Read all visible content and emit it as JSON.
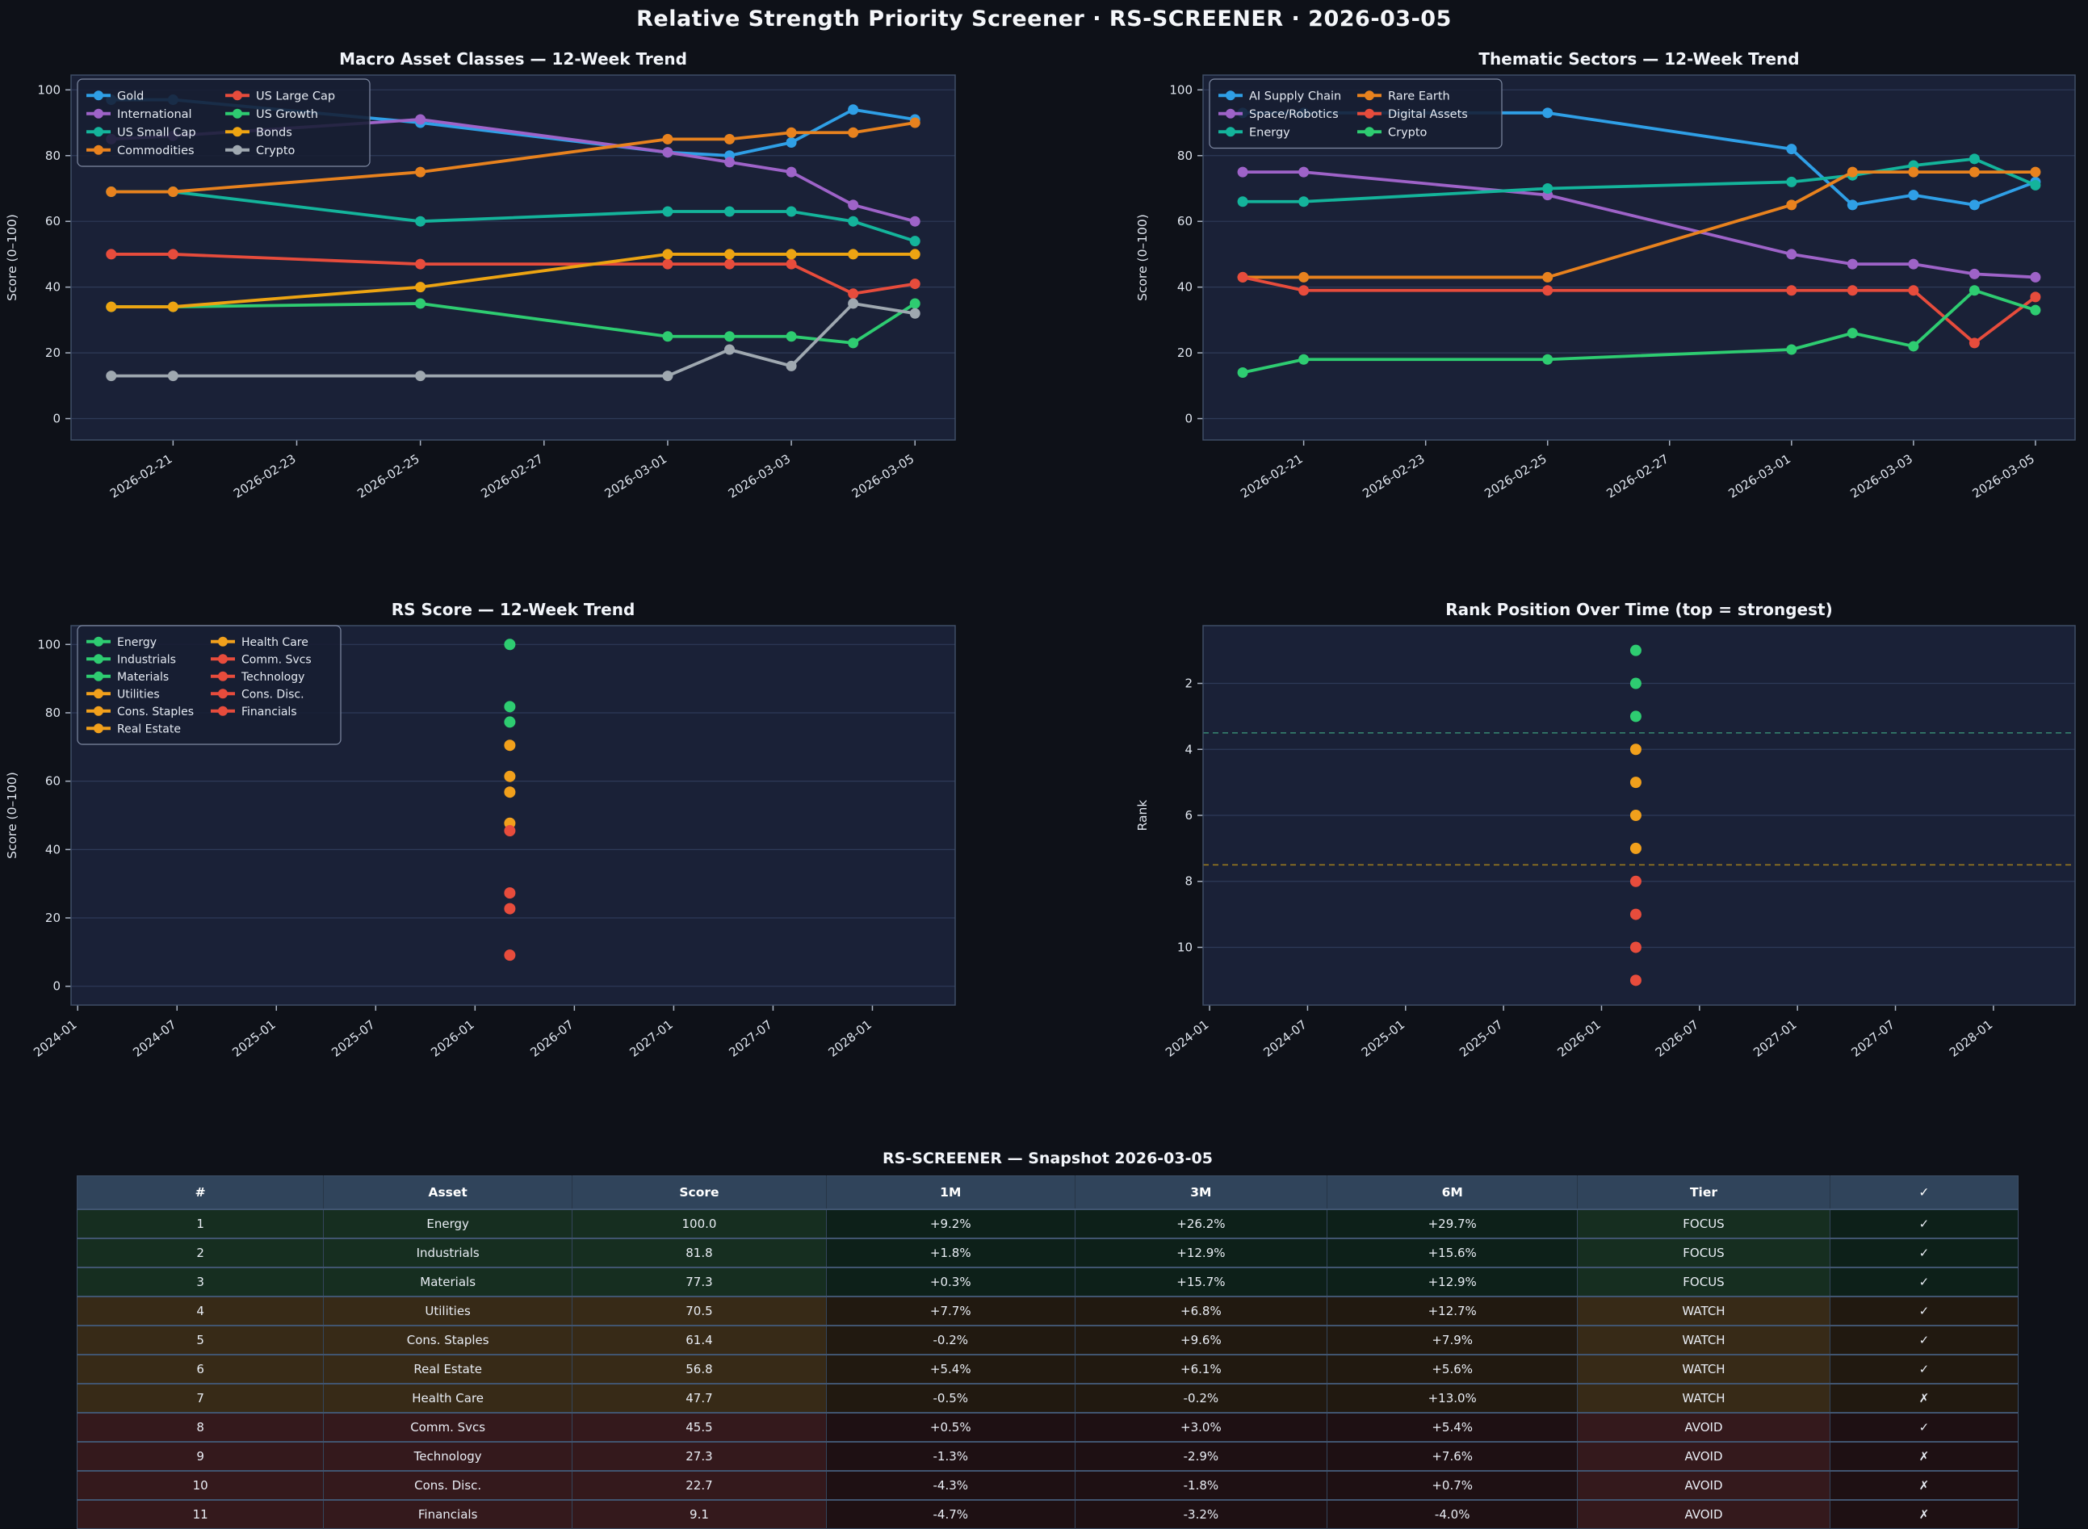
{
  "header": {
    "title": "Relative Strength Priority Screener  ·  RS-SCREENER  ·  2026-03-05"
  },
  "chart_data": [
    {
      "id": "macro",
      "type": "line",
      "title": "Macro Asset Classes — 12-Week Trend",
      "ylabel": "Score (0–100)",
      "ylim": [
        0,
        100
      ],
      "yticks": [
        0,
        20,
        40,
        60,
        80,
        100
      ],
      "x_dates": [
        "2026-02-20",
        "2026-02-21",
        "2026-02-25",
        "2026-03-01",
        "2026-03-02",
        "2026-03-03",
        "2026-03-04",
        "2026-03-05"
      ],
      "x_offsets": [
        0,
        1,
        5,
        9,
        10,
        11,
        12,
        13
      ],
      "xticks": [
        {
          "pos": 1,
          "label": "2026-02-21"
        },
        {
          "pos": 3,
          "label": "2026-02-23"
        },
        {
          "pos": 5,
          "label": "2026-02-25"
        },
        {
          "pos": 7,
          "label": "2026-02-27"
        },
        {
          "pos": 9,
          "label": "2026-03-01"
        },
        {
          "pos": 11,
          "label": "2026-03-03"
        },
        {
          "pos": 13,
          "label": "2026-03-05"
        }
      ],
      "legend_columns": [
        [
          "Gold",
          "International",
          "US Small Cap",
          "Commodities"
        ],
        [
          "US Large Cap",
          "US Growth",
          "Bonds",
          "Crypto"
        ]
      ],
      "series": [
        {
          "name": "Gold",
          "color": "#2f9fe6",
          "values": [
            97,
            97,
            90,
            81,
            80,
            84,
            94,
            91
          ]
        },
        {
          "name": "International",
          "color": "#9e63c8",
          "values": [
            85,
            86,
            91,
            81,
            78,
            75,
            65,
            60
          ]
        },
        {
          "name": "US Small Cap",
          "color": "#14b49b",
          "values": [
            69,
            69,
            60,
            63,
            63,
            63,
            60,
            54
          ]
        },
        {
          "name": "Commodities",
          "color": "#e8821e",
          "values": [
            69,
            69,
            75,
            85,
            85,
            87,
            87,
            90
          ]
        },
        {
          "name": "US Large Cap",
          "color": "#e74c3c",
          "values": [
            50,
            50,
            47,
            47,
            47,
            47,
            38,
            41
          ]
        },
        {
          "name": "US Growth",
          "color": "#2ecc71",
          "values": [
            34,
            34,
            35,
            25,
            25,
            25,
            23,
            35
          ]
        },
        {
          "name": "Bonds",
          "color": "#eda412",
          "values": [
            34,
            34,
            40,
            50,
            50,
            50,
            50,
            50
          ]
        },
        {
          "name": "Crypto",
          "color": "#9fa8b0",
          "values": [
            13,
            13,
            13,
            13,
            21,
            16,
            35,
            32
          ]
        }
      ]
    },
    {
      "id": "thematic",
      "type": "line",
      "title": "Thematic Sectors — 12-Week Trend",
      "ylabel": "Score (0–100)",
      "ylim": [
        0,
        100
      ],
      "yticks": [
        0,
        20,
        40,
        60,
        80,
        100
      ],
      "x_dates": [
        "2026-02-20",
        "2026-02-21",
        "2026-02-25",
        "2026-03-01",
        "2026-03-02",
        "2026-03-03",
        "2026-03-04",
        "2026-03-05"
      ],
      "x_offsets": [
        0,
        1,
        5,
        9,
        10,
        11,
        12,
        13
      ],
      "xticks": [
        {
          "pos": 1,
          "label": "2026-02-21"
        },
        {
          "pos": 3,
          "label": "2026-02-23"
        },
        {
          "pos": 5,
          "label": "2026-02-25"
        },
        {
          "pos": 7,
          "label": "2026-02-27"
        },
        {
          "pos": 9,
          "label": "2026-03-01"
        },
        {
          "pos": 11,
          "label": "2026-03-03"
        },
        {
          "pos": 13,
          "label": "2026-03-05"
        }
      ],
      "legend_columns": [
        [
          "AI Supply Chain",
          "Space/Robotics",
          "Energy"
        ],
        [
          "Rare Earth",
          "Digital Assets",
          "Crypto"
        ]
      ],
      "series": [
        {
          "name": "AI Supply Chain",
          "color": "#2f9fe6",
          "values": [
            93,
            93,
            93,
            82,
            65,
            68,
            65,
            72
          ]
        },
        {
          "name": "Space/Robotics",
          "color": "#9e63c8",
          "values": [
            75,
            75,
            68,
            50,
            47,
            47,
            44,
            43
          ]
        },
        {
          "name": "Energy",
          "color": "#14b49b",
          "values": [
            66,
            66,
            70,
            72,
            74,
            77,
            79,
            71
          ]
        },
        {
          "name": "Rare Earth",
          "color": "#e8821e",
          "values": [
            43,
            43,
            43,
            65,
            75,
            75,
            75,
            75
          ]
        },
        {
          "name": "Digital Assets",
          "color": "#e74c3c",
          "values": [
            43,
            39,
            39,
            39,
            39,
            39,
            23,
            37
          ]
        },
        {
          "name": "Crypto",
          "color": "#2ecc71",
          "values": [
            14,
            18,
            18,
            21,
            26,
            22,
            39,
            33
          ]
        }
      ]
    },
    {
      "id": "rs",
      "type": "scatter",
      "title": "RS Score — 12-Week Trend",
      "ylabel": "Score (0–100)",
      "ylim": [
        0,
        100
      ],
      "yticks": [
        0,
        20,
        40,
        60,
        80,
        100
      ],
      "point_x": 26.1,
      "xticks": [
        {
          "pos": 0,
          "label": "2024-01"
        },
        {
          "pos": 6,
          "label": "2024-07"
        },
        {
          "pos": 12,
          "label": "2025-01"
        },
        {
          "pos": 18,
          "label": "2025-07"
        },
        {
          "pos": 24,
          "label": "2026-01"
        },
        {
          "pos": 30,
          "label": "2026-07"
        },
        {
          "pos": 36,
          "label": "2027-01"
        },
        {
          "pos": 42,
          "label": "2027-07"
        },
        {
          "pos": 48,
          "label": "2028-01"
        }
      ],
      "legend_columns": [
        [
          "Energy",
          "Industrials",
          "Materials",
          "Utilities",
          "Cons. Staples",
          "Real Estate"
        ],
        [
          "Health Care",
          "Comm. Svcs",
          "Technology",
          "Cons. Disc.",
          "Financials"
        ]
      ],
      "points": [
        {
          "name": "Energy",
          "value": 100.0,
          "color": "#2ecc71"
        },
        {
          "name": "Industrials",
          "value": 81.8,
          "color": "#2ecc71"
        },
        {
          "name": "Materials",
          "value": 77.3,
          "color": "#2ecc71"
        },
        {
          "name": "Utilities",
          "value": 70.5,
          "color": "#f1a01c"
        },
        {
          "name": "Cons. Staples",
          "value": 61.4,
          "color": "#f1a01c"
        },
        {
          "name": "Real Estate",
          "value": 56.8,
          "color": "#f1a01c"
        },
        {
          "name": "Health Care",
          "value": 47.7,
          "color": "#f1a01c"
        },
        {
          "name": "Comm. Svcs",
          "value": 45.5,
          "color": "#e74c3c"
        },
        {
          "name": "Technology",
          "value": 27.3,
          "color": "#e74c3c"
        },
        {
          "name": "Cons. Disc.",
          "value": 22.7,
          "color": "#e74c3c"
        },
        {
          "name": "Financials",
          "value": 9.1,
          "color": "#e74c3c"
        }
      ]
    },
    {
      "id": "rank",
      "type": "scatter",
      "title": "Rank Position Over Time  (top = strongest)",
      "ylabel": "Rank",
      "ylim": [
        1,
        11
      ],
      "yticks": [
        2,
        4,
        6,
        8,
        10
      ],
      "point_x": 26.1,
      "xticks": [
        {
          "pos": 0,
          "label": "2024-01"
        },
        {
          "pos": 6,
          "label": "2024-07"
        },
        {
          "pos": 12,
          "label": "2025-01"
        },
        {
          "pos": 18,
          "label": "2025-07"
        },
        {
          "pos": 24,
          "label": "2026-01"
        },
        {
          "pos": 30,
          "label": "2026-07"
        },
        {
          "pos": 36,
          "label": "2027-01"
        },
        {
          "pos": 42,
          "label": "2027-07"
        },
        {
          "pos": 48,
          "label": "2028-01"
        }
      ],
      "hlines": [
        {
          "y": 3.5,
          "color": "#34806d",
          "style": "dashed"
        },
        {
          "y": 7.5,
          "color": "#97781f",
          "style": "dashed"
        }
      ],
      "points": [
        {
          "name": "Energy",
          "value": 1,
          "color": "#2ecc71"
        },
        {
          "name": "Industrials",
          "value": 2,
          "color": "#2ecc71"
        },
        {
          "name": "Materials",
          "value": 3,
          "color": "#2ecc71"
        },
        {
          "name": "Utilities",
          "value": 4,
          "color": "#f1a01c"
        },
        {
          "name": "Cons. Staples",
          "value": 5,
          "color": "#f1a01c"
        },
        {
          "name": "Real Estate",
          "value": 6,
          "color": "#f1a01c"
        },
        {
          "name": "Health Care",
          "value": 7,
          "color": "#f1a01c"
        },
        {
          "name": "Comm. Svcs",
          "value": 8,
          "color": "#e74c3c"
        },
        {
          "name": "Technology",
          "value": 9,
          "color": "#e74c3c"
        },
        {
          "name": "Cons. Disc.",
          "value": 10,
          "color": "#e74c3c"
        },
        {
          "name": "Financials",
          "value": 11,
          "color": "#e74c3c"
        }
      ]
    }
  ],
  "table": {
    "title": "RS-SCREENER — Snapshot 2026-03-05",
    "columns": [
      "#",
      "Asset",
      "Score",
      "1M",
      "3M",
      "6M",
      "Tier",
      "✓"
    ],
    "rows": [
      {
        "rank": "1",
        "asset": "Energy",
        "score": "100.0",
        "m1": "+9.2%",
        "m3": "+26.2%",
        "m6": "+29.7%",
        "tier": "FOCUS",
        "check": "✓"
      },
      {
        "rank": "2",
        "asset": "Industrials",
        "score": "81.8",
        "m1": "+1.8%",
        "m3": "+12.9%",
        "m6": "+15.6%",
        "tier": "FOCUS",
        "check": "✓"
      },
      {
        "rank": "3",
        "asset": "Materials",
        "score": "77.3",
        "m1": "+0.3%",
        "m3": "+15.7%",
        "m6": "+12.9%",
        "tier": "FOCUS",
        "check": "✓"
      },
      {
        "rank": "4",
        "asset": "Utilities",
        "score": "70.5",
        "m1": "+7.7%",
        "m3": "+6.8%",
        "m6": "+12.7%",
        "tier": "WATCH",
        "check": "✓"
      },
      {
        "rank": "5",
        "asset": "Cons. Staples",
        "score": "61.4",
        "m1": "-0.2%",
        "m3": "+9.6%",
        "m6": "+7.9%",
        "tier": "WATCH",
        "check": "✓"
      },
      {
        "rank": "6",
        "asset": "Real Estate",
        "score": "56.8",
        "m1": "+5.4%",
        "m3": "+6.1%",
        "m6": "+5.6%",
        "tier": "WATCH",
        "check": "✓"
      },
      {
        "rank": "7",
        "asset": "Health Care",
        "score": "47.7",
        "m1": "-0.5%",
        "m3": "-0.2%",
        "m6": "+13.0%",
        "tier": "WATCH",
        "check": "✗"
      },
      {
        "rank": "8",
        "asset": "Comm. Svcs",
        "score": "45.5",
        "m1": "+0.5%",
        "m3": "+3.0%",
        "m6": "+5.4%",
        "tier": "AVOID",
        "check": "✓"
      },
      {
        "rank": "9",
        "asset": "Technology",
        "score": "27.3",
        "m1": "-1.3%",
        "m3": "-2.9%",
        "m6": "+7.6%",
        "tier": "AVOID",
        "check": "✗"
      },
      {
        "rank": "10",
        "asset": "Cons. Disc.",
        "score": "22.7",
        "m1": "-4.3%",
        "m3": "-1.8%",
        "m6": "+0.7%",
        "tier": "AVOID",
        "check": "✗"
      },
      {
        "rank": "11",
        "asset": "Financials",
        "score": "9.1",
        "m1": "-4.7%",
        "m3": "-3.2%",
        "m6": "-4.0%",
        "tier": "AVOID",
        "check": "✗"
      }
    ]
  },
  "colors": {
    "page_bg": "#0e1118",
    "panel_bg": "#1a2137",
    "grid": "#2e3a58",
    "spine": "#3e4d66",
    "tick_text": "#dfe5ee",
    "focus": "#2ecc71",
    "watch": "#f1a01c",
    "avoid": "#e74c3c"
  }
}
